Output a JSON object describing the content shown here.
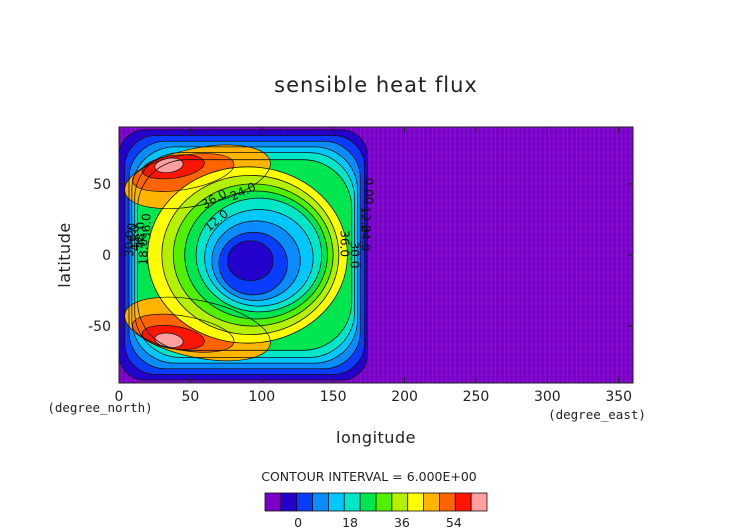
{
  "chart_data": {
    "type": "contour",
    "title": "sensible heat flux",
    "xlabel": "longitude",
    "ylabel": "latitude",
    "x_unit": "(degree_east)",
    "y_unit": "(degree_north)",
    "xlim": [
      0,
      360
    ],
    "ylim": [
      -90,
      90
    ],
    "x_ticks": [
      "0",
      "50",
      "100",
      "150",
      "200",
      "250",
      "300",
      "350"
    ],
    "y_ticks": [
      "50",
      "0",
      "-50"
    ],
    "contour_interval_text": "CONTOUR INTERVAL = 6.000E+00",
    "levels": [
      -6,
      0,
      6,
      12,
      18,
      24,
      30,
      36,
      42,
      48,
      54,
      60
    ],
    "colorbar_ticks": [
      "0",
      "18",
      "36",
      "54"
    ],
    "colorbar_colors": [
      "#7a00c8",
      "#2300cc",
      "#0a3cff",
      "#0a8cff",
      "#00c8ff",
      "#00e6c8",
      "#00e650",
      "#50f000",
      "#b4f000",
      "#ffff00",
      "#ffb400",
      "#ff6400",
      "#ff1400",
      "#ffa0a0"
    ],
    "contour_labels": [
      "36.0",
      "24.0",
      "12.0",
      "36.0",
      "48.0",
      "42.0",
      "30.0",
      "18.0",
      "6.0",
      "36.0",
      "30.0",
      "24.0",
      "12.0",
      "0.00"
    ],
    "field_description_note": null
  }
}
